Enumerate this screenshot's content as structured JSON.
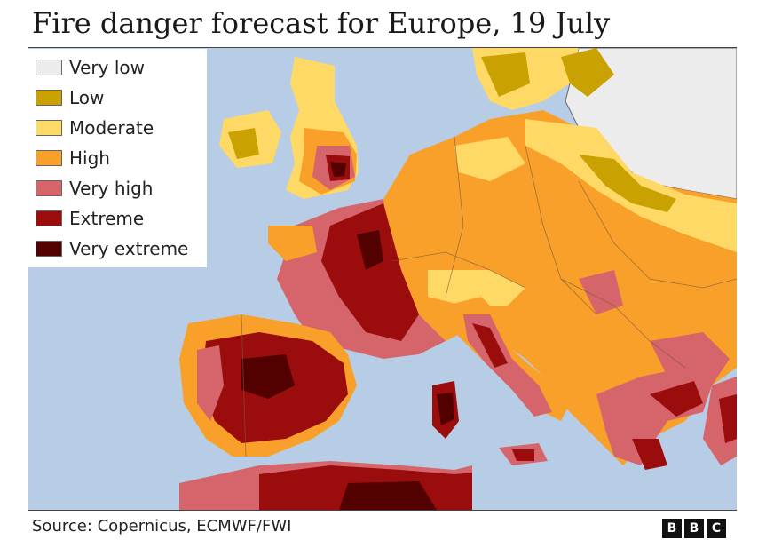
{
  "title": "Fire danger forecast for Europe, 19 July",
  "legend": [
    {
      "label": "Very low",
      "color": "#ececec"
    },
    {
      "label": "Low",
      "color": "#c9a100"
    },
    {
      "label": "Moderate",
      "color": "#ffd966"
    },
    {
      "label": "High",
      "color": "#f9a02a"
    },
    {
      "label": "Very high",
      "color": "#d6656b"
    },
    {
      "label": "Extreme",
      "color": "#9b0d0d"
    },
    {
      "label": "Very extreme",
      "color": "#520000"
    }
  ],
  "source": "Source: Copernicus, ECMWF/FWI",
  "logo": {
    "letters": [
      "B",
      "B",
      "C"
    ]
  },
  "colors": {
    "sea": "#b7cde6",
    "land_border": "#7a5a3a",
    "no_data_land": "#ececec"
  }
}
